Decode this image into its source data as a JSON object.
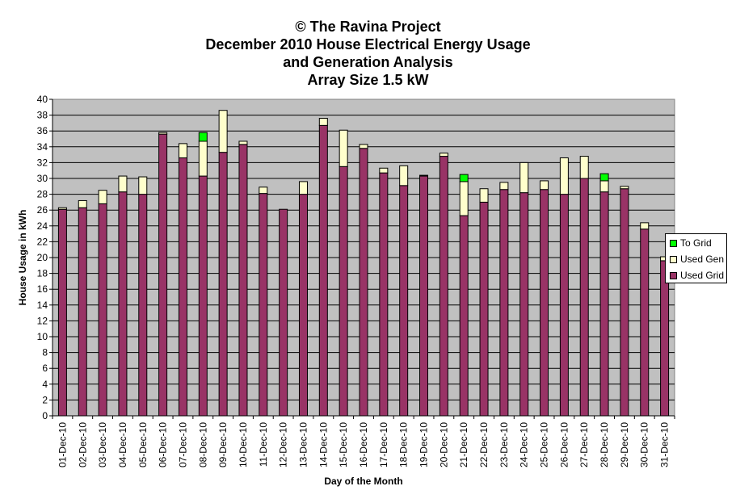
{
  "chart_data": {
    "type": "bar",
    "stacked": true,
    "title_lines": [
      "© The Ravina Project",
      "December 2010 House Electrical Energy Usage",
      "and Generation Analysis",
      "Array Size 1.5 kW"
    ],
    "xlabel": "Day of the Month",
    "ylabel": "House Usage in kWh",
    "ylim": [
      0,
      40
    ],
    "yticks": [
      "0",
      "2",
      "4",
      "6",
      "8",
      "10",
      "12",
      "14",
      "16",
      "18",
      "20",
      "22",
      "24",
      "26",
      "28",
      "30",
      "32",
      "34",
      "36",
      "38",
      "40"
    ],
    "grid": true,
    "legend_position": "right",
    "categories": [
      "01-Dec-10",
      "02-Dec-10",
      "03-Dec-10",
      "04-Dec-10",
      "05-Dec-10",
      "06-Dec-10",
      "07-Dec-10",
      "08-Dec-10",
      "09-Dec-10",
      "10-Dec-10",
      "11-Dec-10",
      "12-Dec-10",
      "13-Dec-10",
      "14-Dec-10",
      "15-Dec-10",
      "16-Dec-10",
      "17-Dec-10",
      "18-Dec-10",
      "19-Dec-10",
      "20-Dec-10",
      "21-Dec-10",
      "22-Dec-10",
      "23-Dec-10",
      "24-Dec-10",
      "25-Dec-10",
      "26-Dec-10",
      "27-Dec-10",
      "28-Dec-10",
      "29-Dec-10",
      "30-Dec-10",
      "31-Dec-10"
    ],
    "series": [
      {
        "name": "Used Grid",
        "color": "#993366",
        "values": [
          26.1,
          26.3,
          26.8,
          28.3,
          28.0,
          35.6,
          32.6,
          30.3,
          33.3,
          34.3,
          28.1,
          26.1,
          28.0,
          36.7,
          31.5,
          33.8,
          30.7,
          29.1,
          30.3,
          32.8,
          25.3,
          27.0,
          28.6,
          28.2,
          28.6,
          28.0,
          30.0,
          28.3,
          28.7,
          23.6,
          19.6
        ]
      },
      {
        "name": "Used Gen",
        "color": "#FFFFCC",
        "values": [
          0.2,
          0.9,
          1.7,
          2.0,
          2.2,
          0.2,
          1.8,
          4.4,
          5.3,
          0.4,
          0.8,
          0,
          1.6,
          0.9,
          4.6,
          0.5,
          0.6,
          2.5,
          0.1,
          0.4,
          4.3,
          1.7,
          0.9,
          3.8,
          1.1,
          4.6,
          2.8,
          1.4,
          0.3,
          0.8,
          0.5
        ]
      },
      {
        "name": "To Grid",
        "color": "#00FF00",
        "values": [
          0,
          0,
          0,
          0,
          0,
          0,
          0,
          1.1,
          0,
          0,
          0,
          0,
          0,
          0,
          0,
          0,
          0,
          0,
          0,
          0,
          0.9,
          0,
          0,
          0,
          0,
          0,
          0,
          0.9,
          0,
          0,
          0
        ]
      }
    ]
  }
}
